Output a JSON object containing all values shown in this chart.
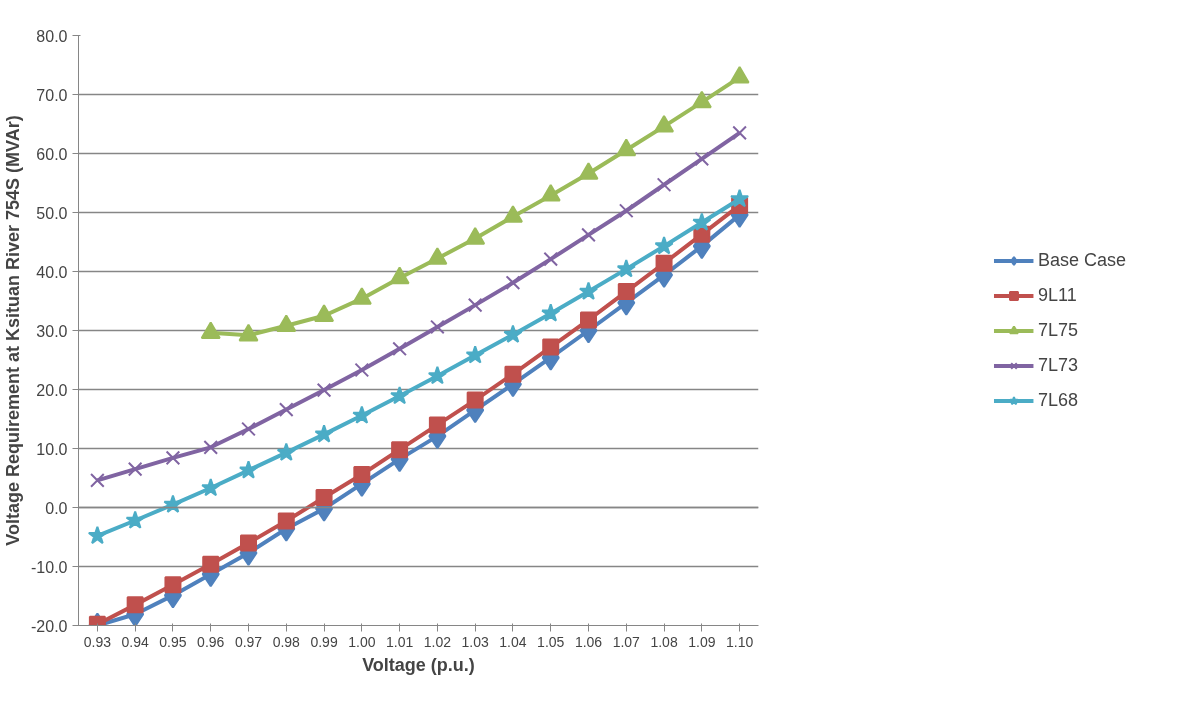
{
  "chart_data": {
    "type": "line",
    "xlabel": "Voltage (p.u.)",
    "ylabel": "Voltage Requirement at Ksituan River 754S (MVAr)",
    "categories": [
      "0.93",
      "0.94",
      "0.95",
      "0.96",
      "0.97",
      "0.98",
      "0.99",
      "1.00",
      "1.01",
      "1.02",
      "1.03",
      "1.04",
      "1.05",
      "1.06",
      "1.07",
      "1.08",
      "1.09",
      "1.10"
    ],
    "ylim": [
      -20,
      80
    ],
    "yticks": [
      {
        "value": -20,
        "label": "-20.0"
      },
      {
        "value": -10,
        "label": "-10.0"
      },
      {
        "value": 0,
        "label": "0.0"
      },
      {
        "value": 10,
        "label": "10.0"
      },
      {
        "value": 20,
        "label": "20.0"
      },
      {
        "value": 30,
        "label": "30.0"
      },
      {
        "value": 40,
        "label": "40.0"
      },
      {
        "value": 50,
        "label": "50.0"
      },
      {
        "value": 60,
        "label": "60.0"
      },
      {
        "value": 70,
        "label": "70.0"
      },
      {
        "value": 80,
        "label": "80.0"
      }
    ],
    "grid": "y",
    "legend": "right",
    "series": [
      {
        "name": "Base Case",
        "color": "#4f81bd",
        "marker": "diamond",
        "values": [
          -20.0,
          -18.1,
          -14.9,
          -11.3,
          -7.7,
          -3.6,
          -0.2,
          4.0,
          8.2,
          12.1,
          16.5,
          20.9,
          25.4,
          30.0,
          34.7,
          39.4,
          44.3,
          49.6
        ]
      },
      {
        "name": "9L11",
        "color": "#c0504d",
        "marker": "square",
        "values": [
          -19.8,
          -16.5,
          -13.1,
          -9.6,
          -6.0,
          -2.3,
          1.7,
          5.6,
          9.8,
          14.0,
          18.2,
          22.6,
          27.2,
          31.8,
          36.6,
          41.4,
          46.3,
          51.2
        ]
      },
      {
        "name": "7L75",
        "color": "#9bbb59",
        "marker": "triangle",
        "values": [
          null,
          null,
          null,
          29.6,
          29.2,
          30.8,
          32.5,
          35.4,
          38.9,
          42.2,
          45.6,
          49.3,
          52.9,
          56.6,
          60.6,
          64.6,
          68.7,
          72.9
        ]
      },
      {
        "name": "7L73",
        "color": "#8064a2",
        "marker": "cross",
        "values": [
          4.6,
          6.5,
          8.4,
          10.2,
          13.3,
          16.6,
          19.9,
          23.3,
          26.9,
          30.6,
          34.3,
          38.1,
          42.1,
          46.2,
          50.3,
          54.7,
          59.1,
          63.5
        ]
      },
      {
        "name": "7L68",
        "color": "#4bacc6",
        "marker": "star",
        "values": [
          -4.8,
          -2.2,
          0.5,
          3.3,
          6.3,
          9.3,
          12.4,
          15.6,
          18.9,
          22.3,
          25.8,
          29.3,
          32.9,
          36.6,
          40.4,
          44.3,
          48.3,
          52.3
        ]
      }
    ]
  }
}
